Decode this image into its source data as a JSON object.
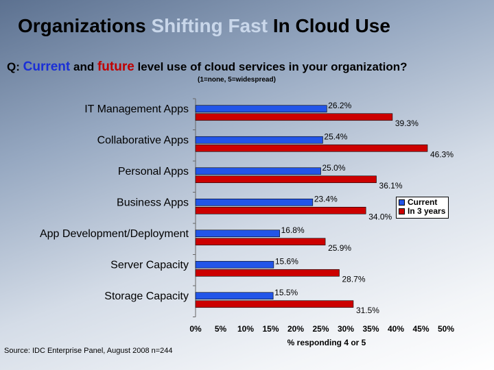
{
  "title": {
    "part1": "Organizations",
    "highlight": "Shifting Fast",
    "part2": "In Cloud Use"
  },
  "question": {
    "prefix": "Q:",
    "current_word": "Current",
    "and_word": "and",
    "future_word": "future",
    "rest": "level use of cloud services in your organization?"
  },
  "scale_note": "(1=none, 5=widespread)",
  "source": "Source: IDC Enterprise Panel, August 2008 n=244",
  "colors": {
    "current": "#2255e8",
    "future": "#cc0000"
  },
  "chart_data": {
    "type": "bar",
    "orientation": "horizontal",
    "categories": [
      "IT Management Apps",
      "Collaborative Apps",
      "Personal Apps",
      "Business Apps",
      "App Development/Deployment",
      "Server Capacity",
      "Storage Capacity"
    ],
    "series": [
      {
        "name": "Current",
        "values": [
          26.2,
          25.4,
          25.0,
          23.4,
          16.8,
          15.6,
          15.5
        ],
        "labels": [
          "26.2%",
          "25.4%",
          "25.0%",
          "23.4%",
          "16.8%",
          "15.6%",
          "15.5%"
        ]
      },
      {
        "name": "In 3 years",
        "values": [
          39.3,
          46.3,
          36.1,
          34.0,
          25.9,
          28.7,
          31.5
        ],
        "labels": [
          "39.3%",
          "46.3%",
          "36.1%",
          "34.0%",
          "25.9%",
          "28.7%",
          "31.5%"
        ]
      }
    ],
    "xlim": [
      0,
      50
    ],
    "xticks": [
      "0%",
      "5%",
      "10%",
      "15%",
      "20%",
      "25%",
      "30%",
      "35%",
      "40%",
      "45%",
      "50%"
    ],
    "xlabel": "% responding 4 or 5",
    "legend": "right"
  }
}
